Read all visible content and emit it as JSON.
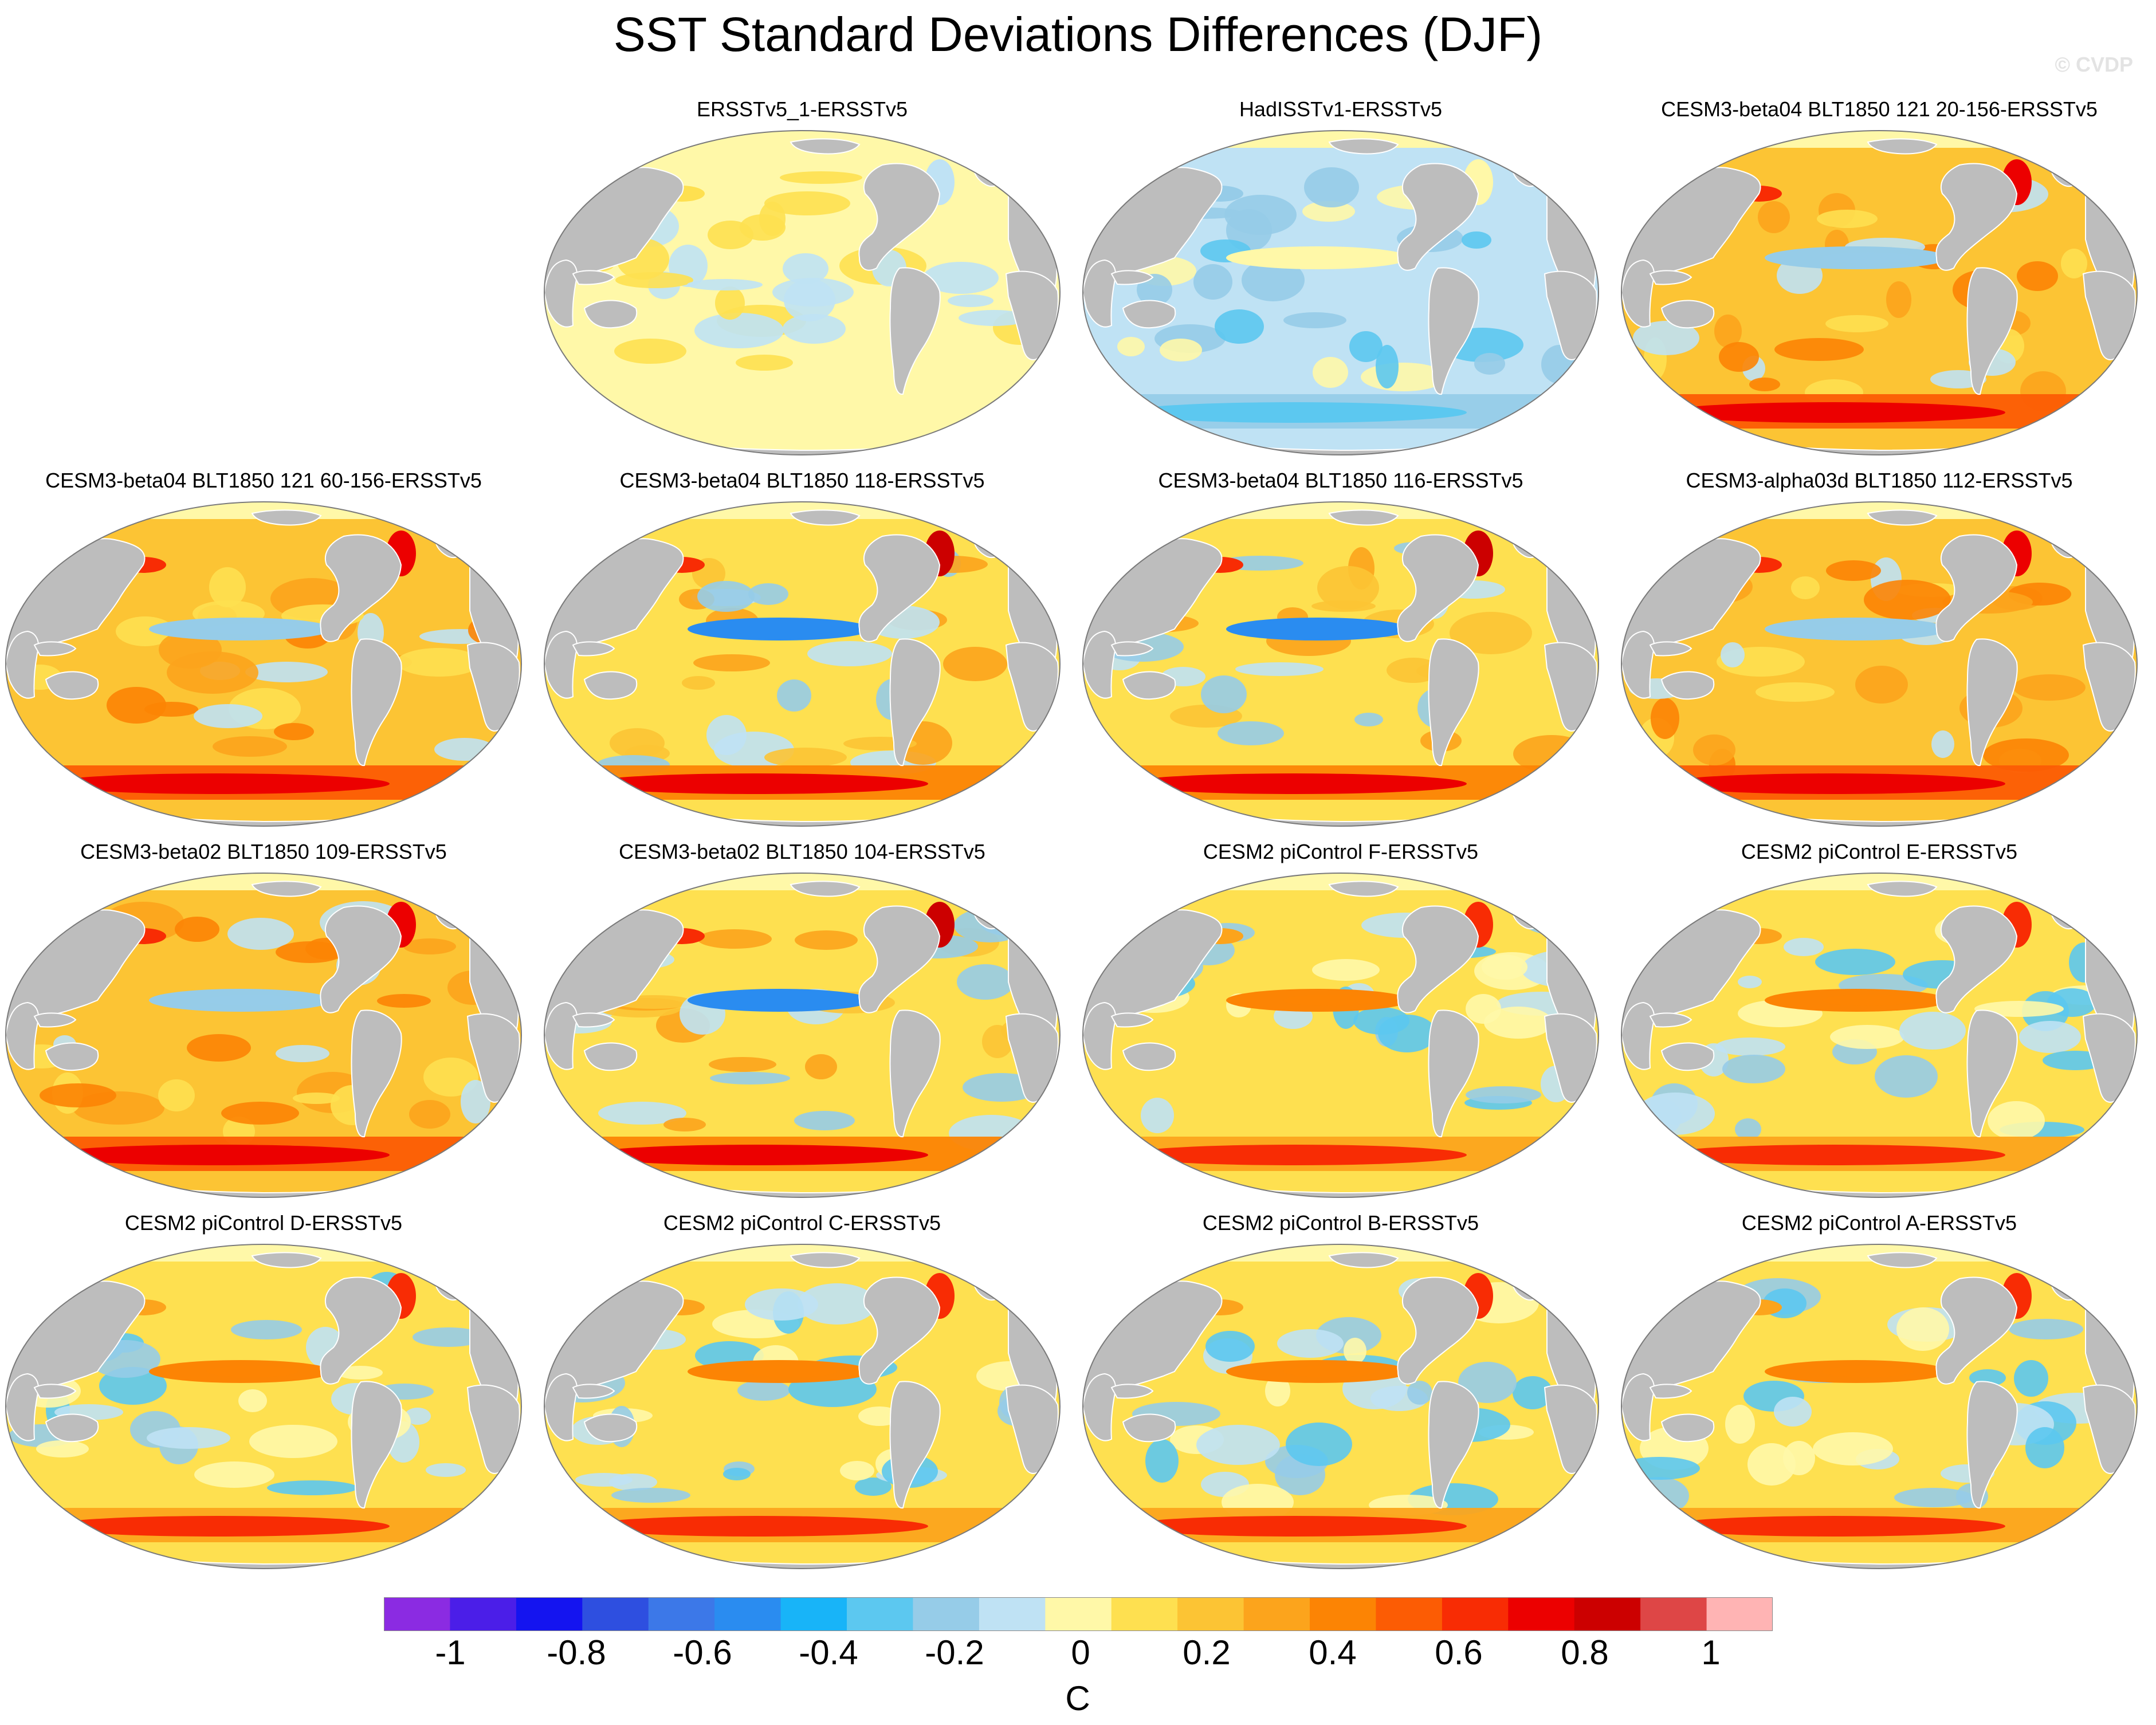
{
  "title": "SST Standard Deviations Differences (DJF)",
  "watermark": "© CVDP",
  "panels": [
    {
      "id": "p1",
      "title": "ERSSTv5_1-ERSSTv5",
      "pattern": "near-zero"
    },
    {
      "id": "p2",
      "title": "HadISSTv1-ERSSTv5",
      "pattern": "negative"
    },
    {
      "id": "p3",
      "title": "CESM3-beta04 BLT1850 121 20-156-ERSSTv5",
      "pattern": "strong-positive"
    },
    {
      "id": "p4",
      "title": "CESM3-beta04 BLT1850 121 60-156-ERSSTv5",
      "pattern": "strong-positive"
    },
    {
      "id": "p5",
      "title": "CESM3-beta04 BLT1850 118-ERSSTv5",
      "pattern": "positive-cold-equator"
    },
    {
      "id": "p6",
      "title": "CESM3-beta04 BLT1850 116-ERSSTv5",
      "pattern": "positive-cold-equator"
    },
    {
      "id": "p7",
      "title": "CESM3-alpha03d BLT1850 112-ERSSTv5",
      "pattern": "strong-positive"
    },
    {
      "id": "p8",
      "title": "CESM3-beta02 BLT1850 109-ERSSTv5",
      "pattern": "strong-positive"
    },
    {
      "id": "p9",
      "title": "CESM3-beta02 BLT1850 104-ERSSTv5",
      "pattern": "positive-cold-equator"
    },
    {
      "id": "p10",
      "title": "CESM2 piControl F-ERSSTv5",
      "pattern": "mixed-warm-equator"
    },
    {
      "id": "p11",
      "title": "CESM2 piControl E-ERSSTv5",
      "pattern": "mixed-warm-equator"
    },
    {
      "id": "p12",
      "title": "CESM2 piControl D-ERSSTv5",
      "pattern": "mixed-warm-equator"
    },
    {
      "id": "p13",
      "title": "CESM2 piControl C-ERSSTv5",
      "pattern": "mixed-warm-equator"
    },
    {
      "id": "p14",
      "title": "CESM2 piControl B-ERSSTv5",
      "pattern": "mixed-warm-equator"
    },
    {
      "id": "p15",
      "title": "CESM2 piControl A-ERSSTv5",
      "pattern": "mixed-warm-equator"
    }
  ],
  "colorbar": {
    "colors": [
      "#8b2be2",
      "#4b1ee8",
      "#1414f0",
      "#2e4fe0",
      "#3c78e8",
      "#2a8cf0",
      "#18b4f8",
      "#5cc8f0",
      "#96cce8",
      "#bfe2f4",
      "#fff8a8",
      "#fee050",
      "#fcc434",
      "#fca41c",
      "#fc8404",
      "#fc5c04",
      "#f82c04",
      "#ec0000",
      "#cc0000",
      "#de4646",
      "#ffb4b4"
    ],
    "labels": [
      "-1",
      "-0.8",
      "-0.6",
      "-0.4",
      "-0.2",
      "0",
      "0.2",
      "0.4",
      "0.6",
      "0.8",
      "1"
    ],
    "units": "C"
  },
  "colors": {
    "land": "#bdbdbd",
    "coast": "#ffffff",
    "ocean_outline": "#7a7a7a"
  }
}
